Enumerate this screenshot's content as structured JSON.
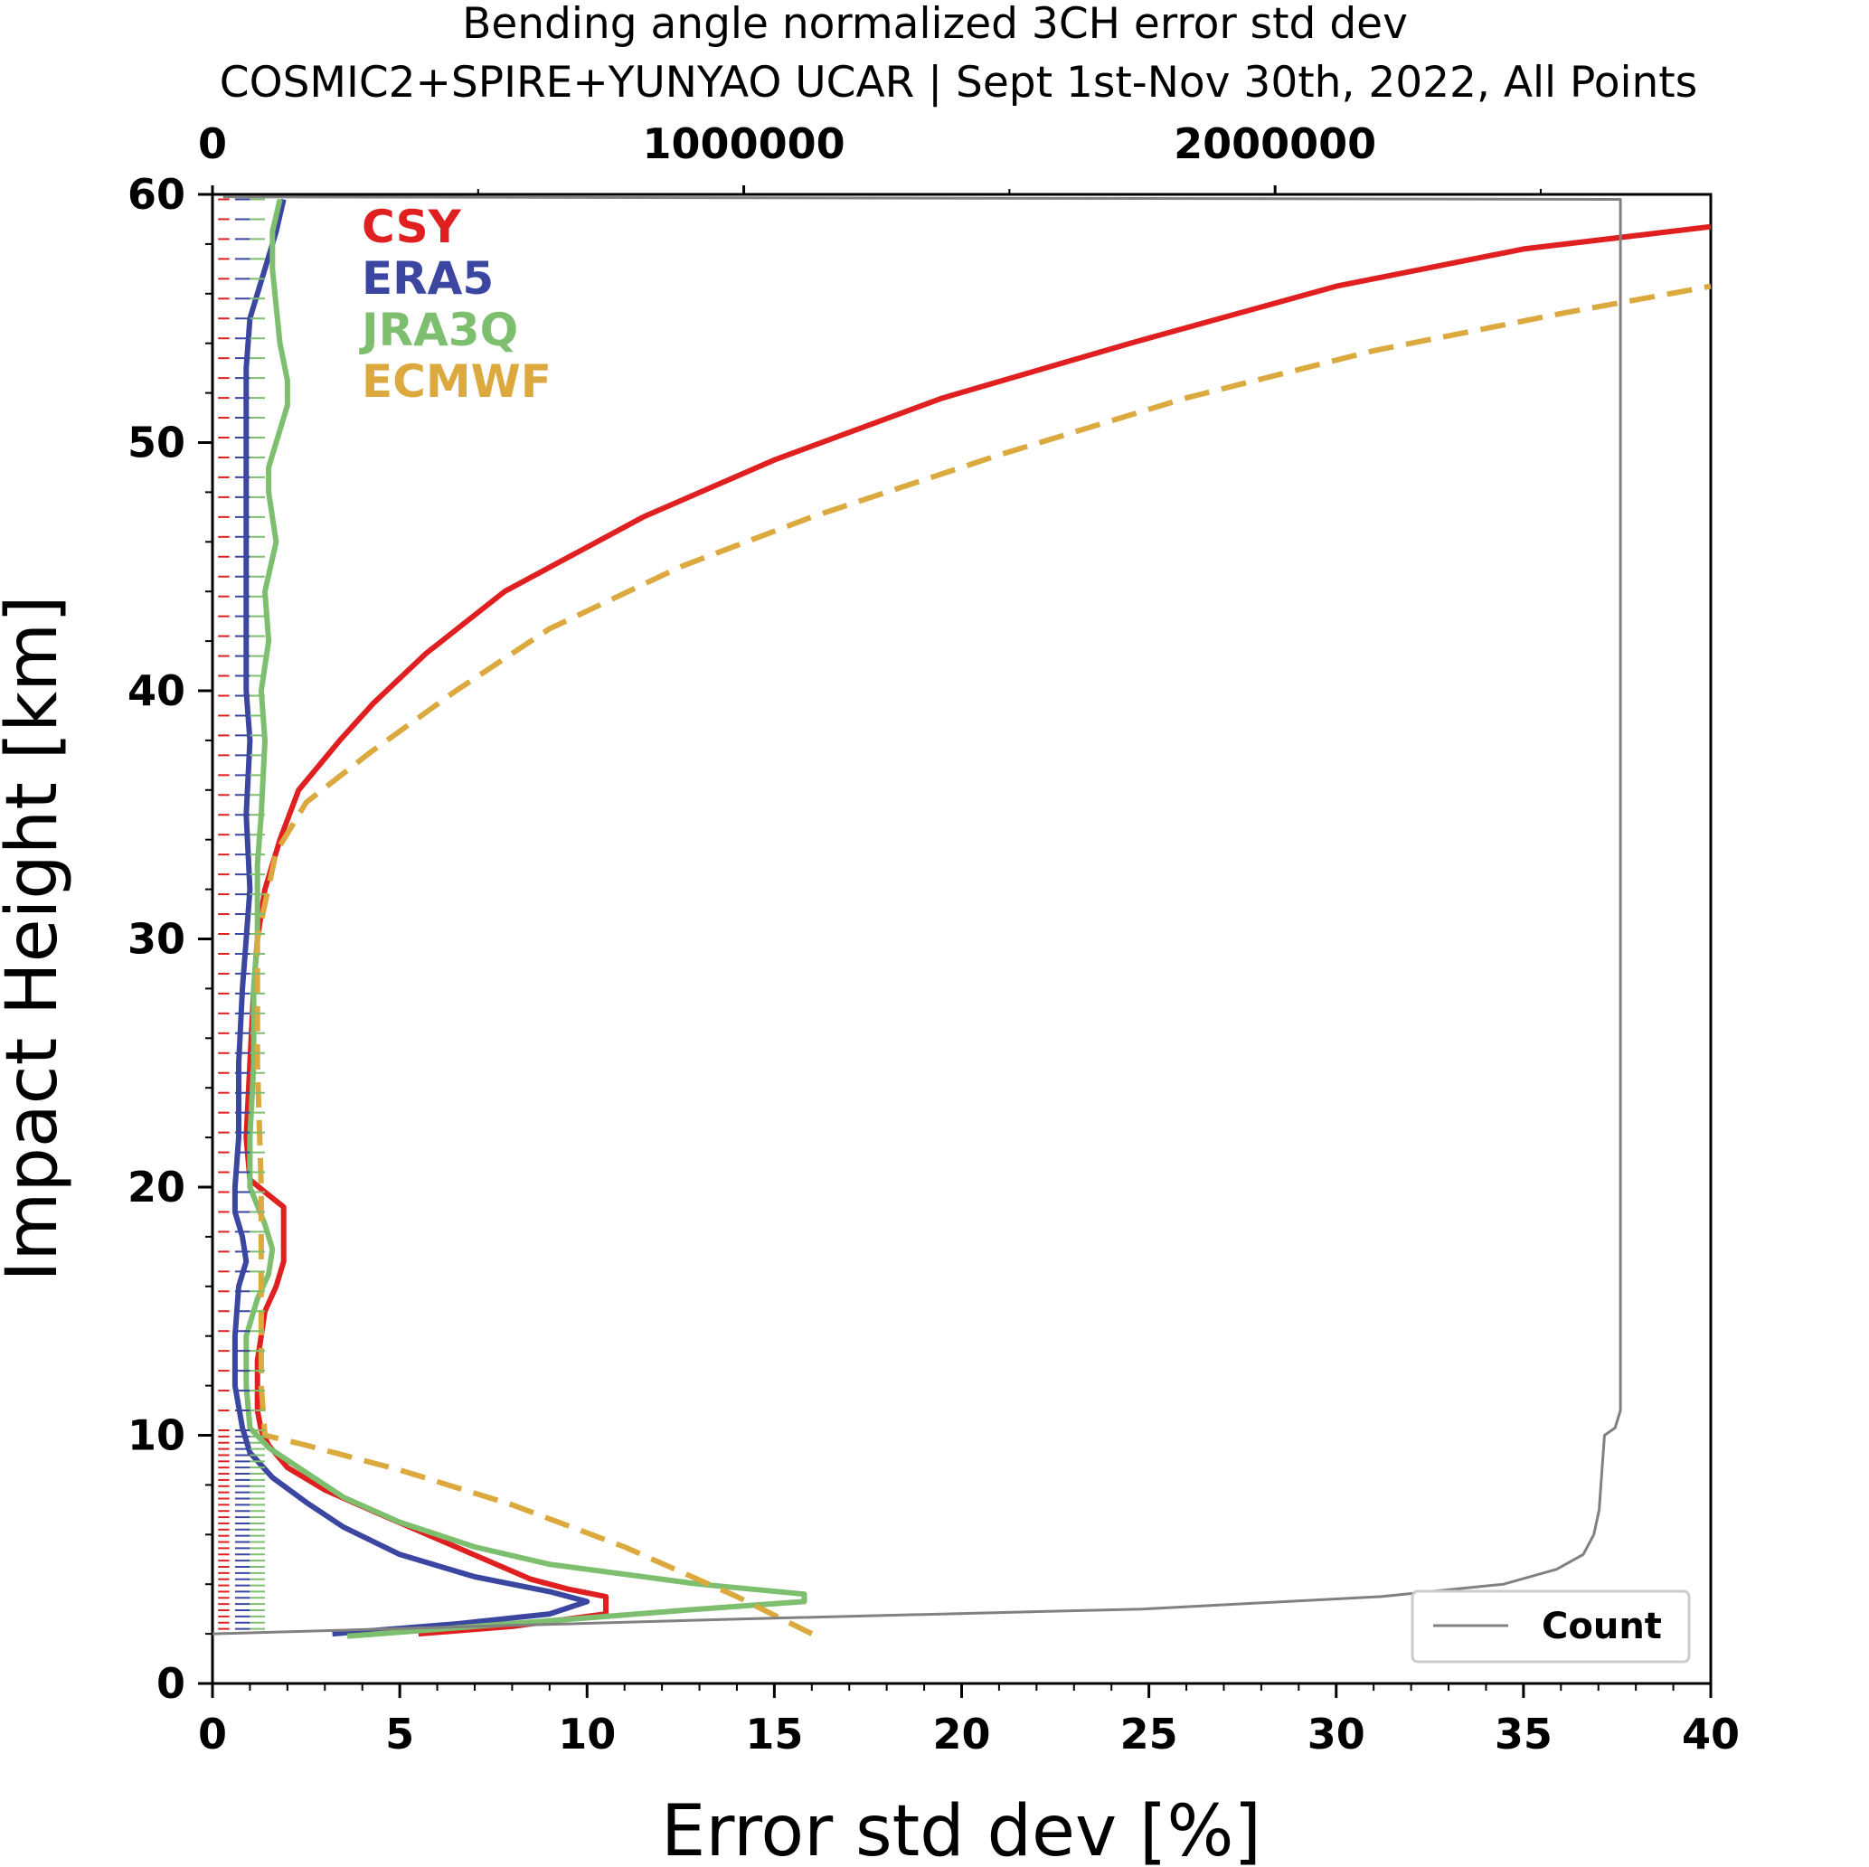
{
  "chart_data": {
    "type": "line",
    "title": "Bending angle normalized 3CH error std dev",
    "subtitle": "COSMIC2+SPIRE+YUNYAO UCAR | Sept 1st-Nov 30th, 2022, All Points",
    "xlabel": "Error std dev [%]",
    "ylabel": "Impact Height [km]",
    "xlim": [
      0,
      40
    ],
    "ylim": [
      0,
      60
    ],
    "x_ticks": [
      "0",
      "5",
      "10",
      "15",
      "20",
      "25",
      "30",
      "35",
      "40"
    ],
    "y_ticks": [
      "0",
      "10",
      "20",
      "30",
      "40",
      "50",
      "60"
    ],
    "top_axis": {
      "xlim": [
        0,
        2820000
      ],
      "ticks": [
        "0",
        "1000000",
        "2000000"
      ]
    },
    "grid": false,
    "legend_placement": "top-left (text only)",
    "series": [
      {
        "name": "CSY",
        "color": "#e02020",
        "style": "solid",
        "points": [
          [
            5.5,
            2.0
          ],
          [
            8.0,
            2.3
          ],
          [
            10.5,
            2.8
          ],
          [
            10.5,
            3.5
          ],
          [
            9.5,
            3.8
          ],
          [
            8.5,
            4.2
          ],
          [
            6.5,
            5.5
          ],
          [
            4.5,
            6.8
          ],
          [
            3.0,
            7.8
          ],
          [
            2.0,
            8.7
          ],
          [
            1.5,
            9.6
          ],
          [
            1.3,
            10.2
          ],
          [
            1.2,
            11.0
          ],
          [
            1.2,
            13.0
          ],
          [
            1.4,
            15.0
          ],
          [
            1.7,
            16.0
          ],
          [
            1.9,
            17.0
          ],
          [
            1.9,
            19.2
          ],
          [
            1.4,
            19.8
          ],
          [
            1.0,
            20.3
          ],
          [
            0.9,
            22.0
          ],
          [
            1.0,
            25.0
          ],
          [
            1.1,
            28.0
          ],
          [
            1.2,
            30.0
          ],
          [
            1.4,
            32.0
          ],
          [
            1.8,
            34.0
          ],
          [
            2.3,
            36.0
          ],
          [
            3.4,
            38.0
          ],
          [
            4.3,
            39.5
          ],
          [
            5.7,
            41.5
          ],
          [
            7.8,
            44.0
          ],
          [
            11.5,
            47.0
          ],
          [
            15.0,
            49.3
          ],
          [
            19.5,
            51.8
          ],
          [
            24.5,
            54.0
          ],
          [
            30.0,
            56.3
          ],
          [
            35.0,
            57.8
          ],
          [
            40.0,
            58.7
          ]
        ]
      },
      {
        "name": "ERA5",
        "color": "#3a46a0",
        "style": "solid",
        "points": [
          [
            3.2,
            2.0
          ],
          [
            6.5,
            2.4
          ],
          [
            9.0,
            2.8
          ],
          [
            10.0,
            3.3
          ],
          [
            9.0,
            3.7
          ],
          [
            7.0,
            4.3
          ],
          [
            5.0,
            5.2
          ],
          [
            3.5,
            6.3
          ],
          [
            2.5,
            7.3
          ],
          [
            1.6,
            8.3
          ],
          [
            1.0,
            9.3
          ],
          [
            0.8,
            10.3
          ],
          [
            0.6,
            12.0
          ],
          [
            0.6,
            14.0
          ],
          [
            0.7,
            16.0
          ],
          [
            0.9,
            17.0
          ],
          [
            0.8,
            18.0
          ],
          [
            0.6,
            19.0
          ],
          [
            0.6,
            20.0
          ],
          [
            0.7,
            22.0
          ],
          [
            0.7,
            25.0
          ],
          [
            0.8,
            28.0
          ],
          [
            0.9,
            30.0
          ],
          [
            1.0,
            32.0
          ],
          [
            0.9,
            35.0
          ],
          [
            1.0,
            38.0
          ],
          [
            0.9,
            40.0
          ],
          [
            0.9,
            45.0
          ],
          [
            0.9,
            50.0
          ],
          [
            0.9,
            53.0
          ],
          [
            1.0,
            55.0
          ],
          [
            1.4,
            57.0
          ],
          [
            1.7,
            58.5
          ],
          [
            1.9,
            59.8
          ]
        ]
      },
      {
        "name": "JRA3Q",
        "color": "#7dbf6e",
        "style": "solid",
        "points": [
          [
            3.6,
            1.9
          ],
          [
            7.0,
            2.3
          ],
          [
            10.5,
            2.7
          ],
          [
            13.0,
            3.0
          ],
          [
            15.8,
            3.3
          ],
          [
            15.8,
            3.6
          ],
          [
            13.0,
            4.0
          ],
          [
            11.0,
            4.4
          ],
          [
            9.0,
            4.8
          ],
          [
            7.0,
            5.5
          ],
          [
            5.0,
            6.5
          ],
          [
            3.5,
            7.5
          ],
          [
            2.5,
            8.5
          ],
          [
            1.5,
            9.5
          ],
          [
            1.0,
            10.3
          ],
          [
            0.9,
            12.0
          ],
          [
            0.9,
            14.0
          ],
          [
            1.2,
            15.5
          ],
          [
            1.5,
            16.5
          ],
          [
            1.6,
            17.5
          ],
          [
            1.4,
            18.5
          ],
          [
            1.0,
            20.0
          ],
          [
            1.0,
            22.0
          ],
          [
            1.1,
            25.0
          ],
          [
            1.1,
            28.0
          ],
          [
            1.2,
            30.0
          ],
          [
            1.2,
            33.0
          ],
          [
            1.3,
            35.0
          ],
          [
            1.4,
            38.0
          ],
          [
            1.3,
            40.0
          ],
          [
            1.5,
            42.0
          ],
          [
            1.4,
            44.0
          ],
          [
            1.7,
            46.0
          ],
          [
            1.5,
            48.0
          ],
          [
            1.5,
            49.0
          ],
          [
            1.8,
            50.5
          ],
          [
            2.0,
            51.5
          ],
          [
            2.0,
            52.5
          ],
          [
            1.8,
            54.0
          ],
          [
            1.7,
            55.5
          ],
          [
            1.6,
            57.0
          ],
          [
            1.6,
            58.5
          ],
          [
            1.8,
            59.8
          ]
        ]
      },
      {
        "name": "ECMWF",
        "color": "#dba93e",
        "style": "dashed",
        "points": [
          [
            16.0,
            2.0
          ],
          [
            14.0,
            3.5
          ],
          [
            11.0,
            5.5
          ],
          [
            8.0,
            7.2
          ],
          [
            5.0,
            8.6
          ],
          [
            2.5,
            9.6
          ],
          [
            1.4,
            10.0
          ],
          [
            1.3,
            12.0
          ],
          [
            1.3,
            15.0
          ],
          [
            1.3,
            20.0
          ],
          [
            1.2,
            25.0
          ],
          [
            1.2,
            30.0
          ],
          [
            1.7,
            33.5
          ],
          [
            2.5,
            35.5
          ],
          [
            4.2,
            37.5
          ],
          [
            6.5,
            40.0
          ],
          [
            9.0,
            42.5
          ],
          [
            12.5,
            45.0
          ],
          [
            16.0,
            47.0
          ],
          [
            21.0,
            49.5
          ],
          [
            26.0,
            51.8
          ],
          [
            31.0,
            53.7
          ],
          [
            36.0,
            55.2
          ],
          [
            40.0,
            56.3
          ]
        ]
      },
      {
        "name": "Count",
        "color": "#808080",
        "style": "solid",
        "axis": "top",
        "points": [
          [
            0,
            2.0
          ],
          [
            1000000,
            2.6
          ],
          [
            1750000,
            3.0
          ],
          [
            2200000,
            3.5
          ],
          [
            2430000,
            4.0
          ],
          [
            2530000,
            4.6
          ],
          [
            2580000,
            5.2
          ],
          [
            2600000,
            6.0
          ],
          [
            2610000,
            7.0
          ],
          [
            2615000,
            8.5
          ],
          [
            2620000,
            10.0
          ],
          [
            2640000,
            10.3
          ],
          [
            2650000,
            11.0
          ],
          [
            2650000,
            20.0
          ],
          [
            2650000,
            40.0
          ],
          [
            2650000,
            59.0
          ],
          [
            2650000,
            59.8
          ],
          [
            20000,
            59.9
          ]
        ]
      }
    ],
    "count_legend": "Count"
  }
}
